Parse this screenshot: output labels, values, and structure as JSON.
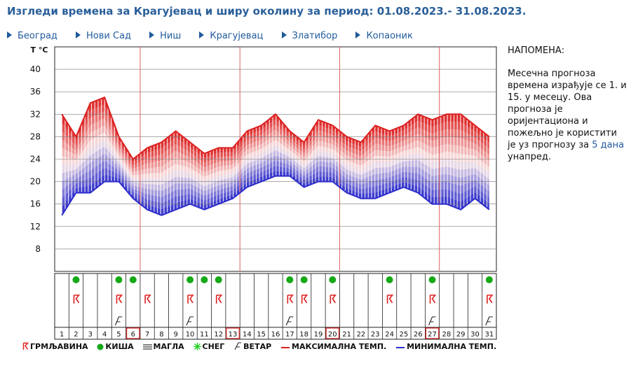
{
  "title": "Изгледи времена за Крагујевац и ширу околину за период: 01.08.2023.- 31.08.2023.",
  "nav": [
    "Београд",
    "Нови Сад",
    "Ниш",
    "Крагујевац",
    "Златибор",
    "Копаоник"
  ],
  "note": {
    "title": "НАПОМЕНА:",
    "text_before": "Месечна прогноза времена израђује се 1. и 15. у месецу. Ова прогноза је оријентациона и пожељно је користити је уз прогнозу за",
    "link": "5 дана",
    "text_after": "унапред."
  },
  "legend": {
    "thunder": "ГРМЉАВИНА",
    "rain": "КИША",
    "fog": "МАГЛА",
    "snow": "СНЕГ",
    "wind": "ВЕТАР",
    "max": "МАКСИМАЛНА ТЕМП.",
    "min": "МИНИМАЛНА ТЕМП."
  },
  "colors": {
    "max": "#dd2020",
    "min": "#2c2ccc",
    "rain": "#17a817",
    "grid_red": "#e06060",
    "title": "#2a5f9a"
  },
  "chart_data": {
    "type": "area",
    "ylabel": "T °C",
    "ylim": [
      4,
      44
    ],
    "yticks": [
      8,
      12,
      16,
      20,
      24,
      28,
      32,
      36,
      40
    ],
    "x": [
      1,
      2,
      3,
      4,
      5,
      6,
      7,
      8,
      9,
      10,
      11,
      12,
      13,
      14,
      15,
      16,
      17,
      18,
      19,
      20,
      21,
      22,
      23,
      24,
      25,
      26,
      27,
      28,
      29,
      30,
      31
    ],
    "series": [
      {
        "name": "МАКСИМАЛНА ТЕМП.",
        "values": [
          32,
          28,
          34,
          35,
          28,
          24,
          26,
          27,
          29,
          27,
          25,
          26,
          26,
          29,
          30,
          32,
          29,
          27,
          31,
          30,
          28,
          27,
          30,
          29,
          30,
          32,
          31,
          32,
          32,
          30,
          28
        ]
      },
      {
        "name": "МИНИМАЛНА ТЕМП.",
        "values": [
          14,
          18,
          18,
          20,
          20,
          17,
          15,
          14,
          15,
          16,
          15,
          16,
          17,
          19,
          20,
          21,
          21,
          19,
          20,
          20,
          18,
          17,
          17,
          18,
          19,
          18,
          16,
          16,
          15,
          17,
          15
        ]
      }
    ],
    "rain_days": [
      2,
      5,
      6,
      10,
      11,
      12,
      17,
      18,
      20,
      24,
      27,
      31
    ],
    "thunder_days": [
      2,
      5,
      7,
      10,
      12,
      17,
      18,
      20,
      24,
      27,
      31
    ],
    "wind_days": [
      5,
      10,
      17,
      27,
      31
    ],
    "highlighted_days": [
      6,
      13,
      20,
      27
    ]
  }
}
